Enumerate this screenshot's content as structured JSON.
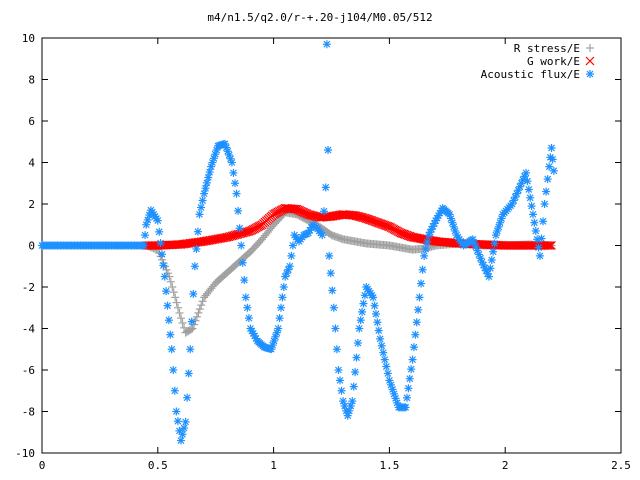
{
  "chart_data": {
    "type": "scatter",
    "title": "m4/n1.5/q2.0/r-+.20-j104/M0.05/512",
    "xlabel": "",
    "ylabel": "",
    "xlim": [
      0,
      2.5
    ],
    "ylim": [
      -10,
      10
    ],
    "xticks": [
      0,
      0.5,
      1,
      1.5,
      2,
      2.5
    ],
    "xtick_labels": [
      "0",
      "0.5",
      "1",
      "1.5",
      "2",
      "2.5"
    ],
    "yticks": [
      -10,
      -8,
      -6,
      -4,
      -2,
      0,
      2,
      4,
      6,
      8,
      10
    ],
    "ytick_labels": [
      "-10",
      "-8",
      "-6",
      "-4",
      "-2",
      "0",
      "2",
      "4",
      "6",
      "8",
      "10"
    ],
    "grid": false,
    "legend_position": "top-right",
    "series": [
      {
        "name": "R stress/E",
        "marker": "+",
        "color": "#a0a0a0",
        "points": [
          [
            0.45,
            0.0
          ],
          [
            0.5,
            -0.2
          ],
          [
            0.55,
            -1.5
          ],
          [
            0.6,
            -3.5
          ],
          [
            0.62,
            -4.2
          ],
          [
            0.65,
            -4.0
          ],
          [
            0.7,
            -2.5
          ],
          [
            0.75,
            -1.8
          ],
          [
            0.8,
            -1.3
          ],
          [
            0.85,
            -0.8
          ],
          [
            0.9,
            -0.3
          ],
          [
            0.95,
            0.3
          ],
          [
            1.0,
            1.0
          ],
          [
            1.05,
            1.6
          ],
          [
            1.1,
            1.5
          ],
          [
            1.15,
            1.2
          ],
          [
            1.2,
            0.9
          ],
          [
            1.25,
            0.5
          ],
          [
            1.3,
            0.3
          ],
          [
            1.35,
            0.2
          ],
          [
            1.4,
            0.1
          ],
          [
            1.45,
            0.05
          ],
          [
            1.5,
            0.0
          ],
          [
            1.55,
            -0.1
          ],
          [
            1.6,
            -0.2
          ],
          [
            1.65,
            -0.15
          ],
          [
            1.7,
            0.0
          ],
          [
            1.8,
            0.1
          ],
          [
            1.9,
            0.0
          ],
          [
            2.0,
            0.0
          ],
          [
            2.1,
            0.05
          ],
          [
            2.2,
            0.0
          ]
        ]
      },
      {
        "name": "G work/E",
        "marker": "x",
        "color": "#ff0000",
        "points": [
          [
            0.45,
            0.0
          ],
          [
            0.5,
            0.0
          ],
          [
            0.6,
            0.05
          ],
          [
            0.7,
            0.2
          ],
          [
            0.8,
            0.4
          ],
          [
            0.9,
            0.7
          ],
          [
            0.95,
            1.0
          ],
          [
            1.0,
            1.5
          ],
          [
            1.05,
            1.8
          ],
          [
            1.1,
            1.75
          ],
          [
            1.15,
            1.5
          ],
          [
            1.2,
            1.35
          ],
          [
            1.25,
            1.4
          ],
          [
            1.3,
            1.5
          ],
          [
            1.35,
            1.45
          ],
          [
            1.4,
            1.3
          ],
          [
            1.45,
            1.1
          ],
          [
            1.5,
            0.9
          ],
          [
            1.55,
            0.6
          ],
          [
            1.6,
            0.4
          ],
          [
            1.65,
            0.3
          ],
          [
            1.7,
            0.2
          ],
          [
            1.8,
            0.1
          ],
          [
            1.9,
            0.05
          ],
          [
            2.0,
            0.0
          ],
          [
            2.1,
            0.0
          ],
          [
            2.2,
            0.0
          ]
        ]
      },
      {
        "name": "Acoustic flux/E",
        "marker": "*",
        "color": "#1e90ff",
        "points": [
          [
            0.0,
            0.0
          ],
          [
            0.1,
            0.0
          ],
          [
            0.2,
            0.0
          ],
          [
            0.3,
            0.0
          ],
          [
            0.4,
            0.0
          ],
          [
            0.44,
            0.0
          ],
          [
            0.45,
            1.0
          ],
          [
            0.47,
            1.7
          ],
          [
            0.5,
            1.2
          ],
          [
            0.53,
            -1.5
          ],
          [
            0.56,
            -5.0
          ],
          [
            0.58,
            -8.0
          ],
          [
            0.6,
            -9.4
          ],
          [
            0.62,
            -8.5
          ],
          [
            0.64,
            -5.0
          ],
          [
            0.66,
            -1.0
          ],
          [
            0.68,
            1.5
          ],
          [
            0.7,
            2.5
          ],
          [
            0.73,
            3.8
          ],
          [
            0.76,
            4.8
          ],
          [
            0.79,
            4.9
          ],
          [
            0.82,
            4.0
          ],
          [
            0.84,
            2.5
          ],
          [
            0.86,
            0.0
          ],
          [
            0.88,
            -2.5
          ],
          [
            0.9,
            -4.0
          ],
          [
            0.93,
            -4.6
          ],
          [
            0.96,
            -4.9
          ],
          [
            0.99,
            -5.0
          ],
          [
            1.02,
            -4.0
          ],
          [
            1.05,
            -1.5
          ],
          [
            1.07,
            -1.0
          ],
          [
            1.09,
            0.5
          ],
          [
            1.11,
            0.2
          ],
          [
            1.13,
            0.5
          ],
          [
            1.15,
            0.6
          ],
          [
            1.17,
            1.0
          ],
          [
            1.19,
            0.8
          ],
          [
            1.21,
            0.5
          ],
          [
            1.225,
            2.8
          ],
          [
            1.23,
            9.7
          ],
          [
            1.24,
            -0.5
          ],
          [
            1.26,
            -3.0
          ],
          [
            1.28,
            -6.0
          ],
          [
            1.3,
            -7.5
          ],
          [
            1.32,
            -8.2
          ],
          [
            1.34,
            -7.5
          ],
          [
            1.37,
            -4.0
          ],
          [
            1.4,
            -2.0
          ],
          [
            1.43,
            -2.5
          ],
          [
            1.46,
            -4.5
          ],
          [
            1.5,
            -6.5
          ],
          [
            1.54,
            -7.8
          ],
          [
            1.57,
            -7.8
          ],
          [
            1.6,
            -5.5
          ],
          [
            1.63,
            -2.5
          ],
          [
            1.65,
            -0.5
          ],
          [
            1.67,
            0.5
          ],
          [
            1.7,
            1.2
          ],
          [
            1.73,
            1.8
          ],
          [
            1.76,
            1.5
          ],
          [
            1.79,
            0.5
          ],
          [
            1.82,
            0.0
          ],
          [
            1.86,
            0.3
          ],
          [
            1.9,
            -0.8
          ],
          [
            1.93,
            -1.5
          ],
          [
            1.96,
            0.5
          ],
          [
            1.99,
            1.5
          ],
          [
            2.03,
            2.0
          ],
          [
            2.07,
            3.0
          ],
          [
            2.09,
            3.5
          ],
          [
            2.12,
            1.5
          ],
          [
            2.15,
            -0.5
          ],
          [
            2.17,
            2.0
          ],
          [
            2.19,
            3.8
          ],
          [
            2.2,
            4.7
          ],
          [
            2.21,
            3.6
          ]
        ]
      }
    ]
  }
}
